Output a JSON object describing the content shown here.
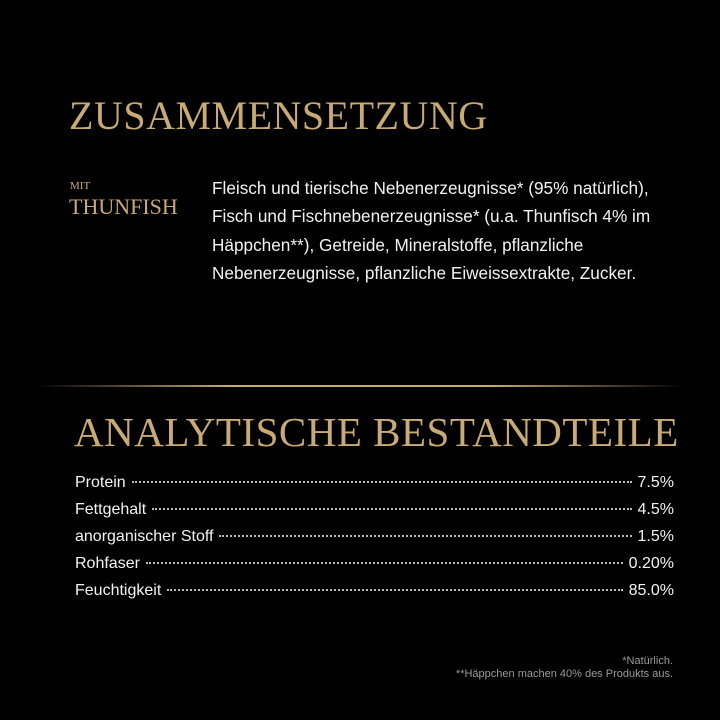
{
  "composition": {
    "title": "ZUSAMMENSETZUNG",
    "variant_prefix": "MIT",
    "variant": "THUNFISH",
    "text": "Fleisch und tierische Nebenerzeugnisse* (95% natürlich), Fisch und Fischnebenerzeugnisse* (u.a. Thunfisch 4% im Häppchen**), Getreide, Mineralstoffe, pflanzliche Nebenerzeugnisse, pflanzliche Eiweissextrakte, Zucker."
  },
  "analysis": {
    "title": "ANALYTISCHE BESTANDTEILE",
    "rows": [
      {
        "label": "Protein",
        "value": "7.5%"
      },
      {
        "label": "Fettgehalt",
        "value": "4.5%"
      },
      {
        "label": "anorganischer Stoff",
        "value": "1.5%"
      },
      {
        "label": "Rohfaser",
        "value": "0.20%"
      },
      {
        "label": "Feuchtigkeit",
        "value": "85.0%"
      }
    ]
  },
  "footnotes": [
    "*Natürlich.",
    "**Häppchen machen 40% des Produkts aus."
  ],
  "colors": {
    "background": "#000000",
    "gold": "#c9ab6f"
  }
}
